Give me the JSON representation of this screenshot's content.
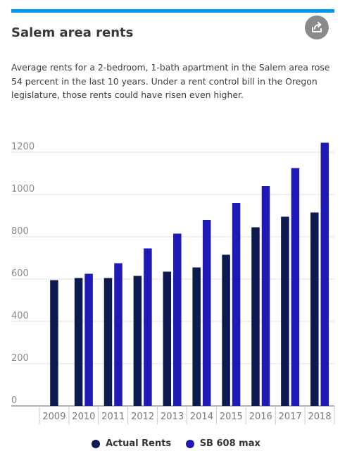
{
  "header": {
    "title": "Salem area rents",
    "description": "Average rents for a 2-bedroom, 1-bath apartment in the Salem area rose 54 percent in the last 10 years. Under a rent control bill in the Oregon legislature, those rents could have risen even higher.",
    "share_icon": "share-icon"
  },
  "colors": {
    "accent_bar": "#0098f0",
    "actual": "#0c1a4f",
    "sb608": "#1f1ab5"
  },
  "chart_data": {
    "type": "bar",
    "title": "Salem area rents",
    "xlabel": "",
    "ylabel": "",
    "categories": [
      "2009",
      "2010",
      "2011",
      "2012",
      "2013",
      "2014",
      "2015",
      "2016",
      "2017",
      "2018"
    ],
    "series": [
      {
        "name": "Actual Rents",
        "values": [
          595,
          605,
          605,
          615,
          635,
          655,
          715,
          845,
          895,
          915
        ]
      },
      {
        "name": "SB 608 max",
        "values": [
          null,
          625,
          675,
          745,
          815,
          880,
          960,
          1040,
          1125,
          1245
        ]
      }
    ],
    "yticks": [
      "0",
      "200",
      "400",
      "600",
      "800",
      "1000",
      "1200"
    ],
    "ylim": [
      0,
      1300
    ],
    "grid": true,
    "legend_position": "bottom"
  }
}
